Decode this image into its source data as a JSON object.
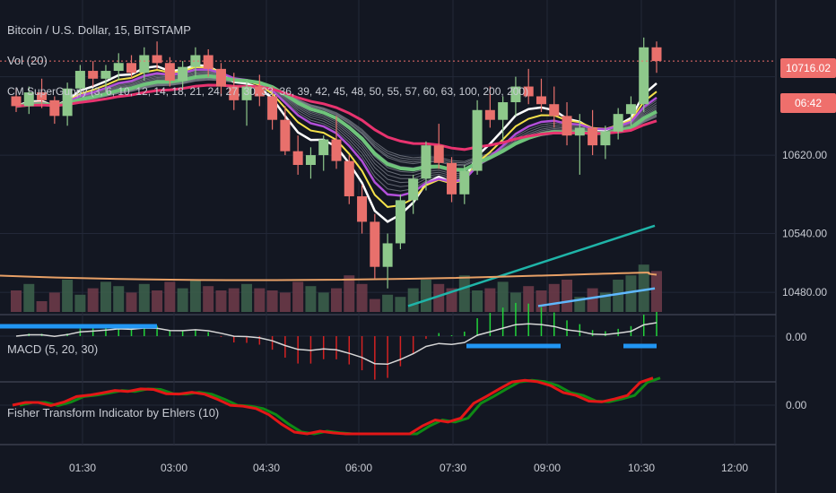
{
  "chart_data": [
    {
      "type": "candlestick",
      "title": "Bitcoin / U.S. Dollar, 15, BITSTAMP",
      "x_tick_labels": [
        "01:30",
        "03:00",
        "04:30",
        "06:00",
        "07:30",
        "09:00",
        "10:30",
        "12:00"
      ],
      "y_tick_labels": [
        "10480.00",
        "10540.00",
        "10620.00",
        "10716.02",
        "06:42"
      ],
      "ylim": [
        10460,
        10760
      ],
      "last_price": "10716.02",
      "countdown": "06:42",
      "ohlc": [
        [
          10680,
          10688,
          10664,
          10670
        ],
        [
          10670,
          10690,
          10662,
          10684
        ],
        [
          10684,
          10698,
          10668,
          10676
        ],
        [
          10676,
          10680,
          10652,
          10660
        ],
        [
          10660,
          10694,
          10650,
          10688
        ],
        [
          10688,
          10712,
          10680,
          10706
        ],
        [
          10706,
          10716,
          10690,
          10698
        ],
        [
          10698,
          10712,
          10684,
          10706
        ],
        [
          10706,
          10724,
          10696,
          10714
        ],
        [
          10714,
          10722,
          10698,
          10704
        ],
        [
          10704,
          10730,
          10696,
          10722
        ],
        [
          10722,
          10736,
          10708,
          10714
        ],
        [
          10714,
          10720,
          10690,
          10696
        ],
        [
          10696,
          10716,
          10688,
          10710
        ],
        [
          10710,
          10730,
          10700,
          10722
        ],
        [
          10722,
          10728,
          10700,
          10708
        ],
        [
          10708,
          10714,
          10680,
          10690
        ],
        [
          10690,
          10704,
          10666,
          10676
        ],
        [
          10676,
          10696,
          10650,
          10690
        ],
        [
          10690,
          10702,
          10670,
          10680
        ],
        [
          10680,
          10690,
          10646,
          10656
        ],
        [
          10656,
          10670,
          10620,
          10624
        ],
        [
          10624,
          10640,
          10600,
          10610
        ],
        [
          10610,
          10628,
          10596,
          10620
        ],
        [
          10620,
          10640,
          10604,
          10636
        ],
        [
          10636,
          10660,
          10606,
          10614
        ],
        [
          10614,
          10620,
          10570,
          10578
        ],
        [
          10578,
          10590,
          10540,
          10552
        ],
        [
          10552,
          10560,
          10494,
          10506
        ],
        [
          10506,
          10540,
          10484,
          10530
        ],
        [
          10530,
          10580,
          10524,
          10574
        ],
        [
          10574,
          10600,
          10560,
          10596
        ],
        [
          10596,
          10634,
          10584,
          10630
        ],
        [
          10630,
          10652,
          10606,
          10612
        ],
        [
          10612,
          10618,
          10572,
          10580
        ],
        [
          10580,
          10610,
          10570,
          10604
        ],
        [
          10604,
          10676,
          10600,
          10666
        ],
        [
          10666,
          10690,
          10648,
          10656
        ],
        [
          10656,
          10680,
          10634,
          10674
        ],
        [
          10674,
          10700,
          10660,
          10690
        ],
        [
          10690,
          10708,
          10672,
          10680
        ],
        [
          10680,
          10698,
          10664,
          10672
        ],
        [
          10672,
          10690,
          10648,
          10660
        ],
        [
          10660,
          10674,
          10630,
          10640
        ],
        [
          10640,
          10662,
          10600,
          10648
        ],
        [
          10648,
          10666,
          10620,
          10630
        ],
        [
          10630,
          10650,
          10616,
          10644
        ],
        [
          10644,
          10668,
          10636,
          10662
        ],
        [
          10662,
          10680,
          10650,
          10672
        ],
        [
          10672,
          10740,
          10664,
          10730
        ],
        [
          10730,
          10736,
          10704,
          10716
        ]
      ]
    },
    {
      "type": "bar",
      "title": "Vol (20)",
      "values": [
        20,
        26,
        10,
        18,
        30,
        16,
        22,
        28,
        24,
        18,
        26,
        20,
        28,
        22,
        30,
        24,
        20,
        22,
        26,
        22,
        20,
        18,
        28,
        24,
        18,
        22,
        34,
        26,
        12,
        16,
        14,
        22,
        30,
        26,
        22,
        34,
        20,
        22,
        28,
        18,
        24,
        20,
        26,
        30,
        14,
        22,
        18,
        30,
        34,
        44,
        38
      ]
    },
    {
      "type": "line",
      "title": "MACD (5, 20, 30)",
      "y_tick_labels": [
        "0.00"
      ]
    },
    {
      "type": "line",
      "title": "Fisher Transform Indicator by Ehlers (10)",
      "y_tick_labels": [
        "0.00"
      ]
    }
  ],
  "overlays": {
    "supergupy_label": "CM SuperGuppy (3, 6, 10, 12, 14, 18, 21, 24, 27, 30, 33, 36, 39, 42, 45, 48, 50, 55, 57, 60, 63, 100, 200, 200)"
  },
  "colors": {
    "up": "#8ec88b",
    "down": "#e8706c",
    "background": "#131722",
    "ema_fast": "#ffffff",
    "ema_yellow": "#f5e14a",
    "ema_purple": "#b24fd9",
    "ema_green": "#6fc47b",
    "ema_pink": "#e8336f",
    "ema_cyan": "#1fb4a8",
    "macd_blue": "#2196f3",
    "fisher_green": "#0f8a15",
    "fisher_red": "#e41717"
  }
}
